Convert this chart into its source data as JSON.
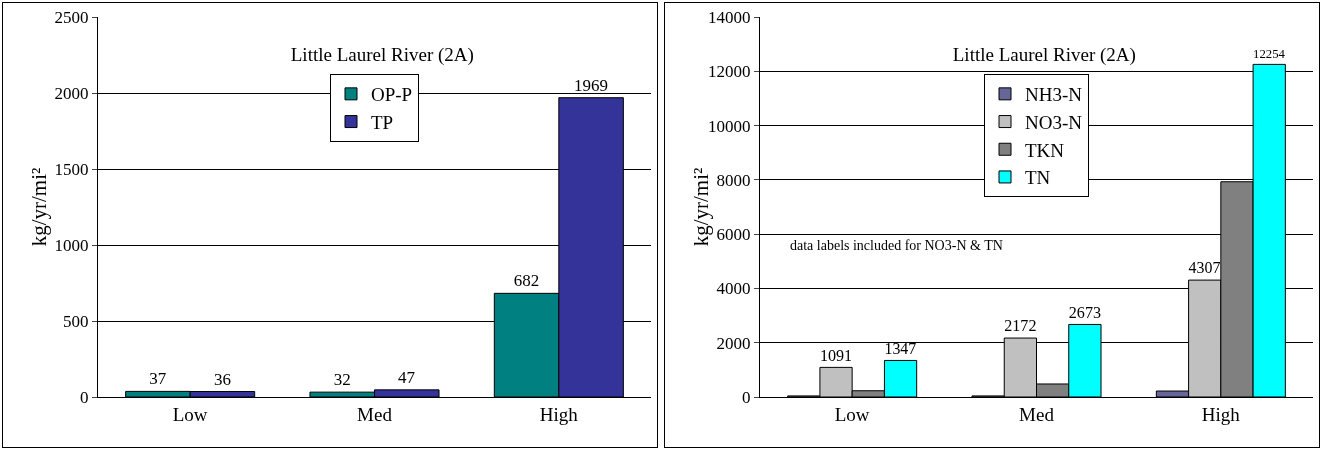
{
  "chart_data": [
    {
      "type": "bar",
      "title": "Little Laurel River (2A)",
      "ylabel": "kg/yr/mi²",
      "categories": [
        "Low",
        "Med",
        "High"
      ],
      "series": [
        {
          "name": "OP-P",
          "color": "#008080",
          "values": [
            37,
            32,
            682
          ]
        },
        {
          "name": "TP",
          "color": "#333399",
          "values": [
            36,
            47,
            1969
          ]
        }
      ],
      "ylim": [
        0,
        2500
      ],
      "yticks": [
        0,
        500,
        1000,
        1500,
        2000,
        2500
      ],
      "grid": "y",
      "legend": "top",
      "data_labels": true
    },
    {
      "type": "bar",
      "title": "Little Laurel River (2A)",
      "ylabel": "kg/yr/mi²",
      "categories": [
        "Low",
        "Med",
        "High"
      ],
      "series": [
        {
          "name": "NH3-N",
          "color": "#666699",
          "values": [
            40,
            40,
            220
          ]
        },
        {
          "name": "NO3-N",
          "color": "#c0c0c0",
          "values": [
            1091,
            2172,
            4307
          ],
          "value_labels": [
            "1091",
            "2172",
            "4307"
          ]
        },
        {
          "name": "TKN",
          "color": "#808080",
          "values": [
            230,
            480,
            7930
          ]
        },
        {
          "name": "TN",
          "color": "#00ffff",
          "values": [
            1347,
            2673,
            12254
          ],
          "value_labels": [
            "1347",
            "2673",
            "12254"
          ]
        }
      ],
      "ylim": [
        0,
        14000
      ],
      "yticks": [
        0,
        2000,
        4000,
        6000,
        8000,
        10000,
        12000,
        14000
      ],
      "grid": "y",
      "legend": "top",
      "annotations": [
        "data labels included for NO3-N & TN"
      ]
    }
  ]
}
